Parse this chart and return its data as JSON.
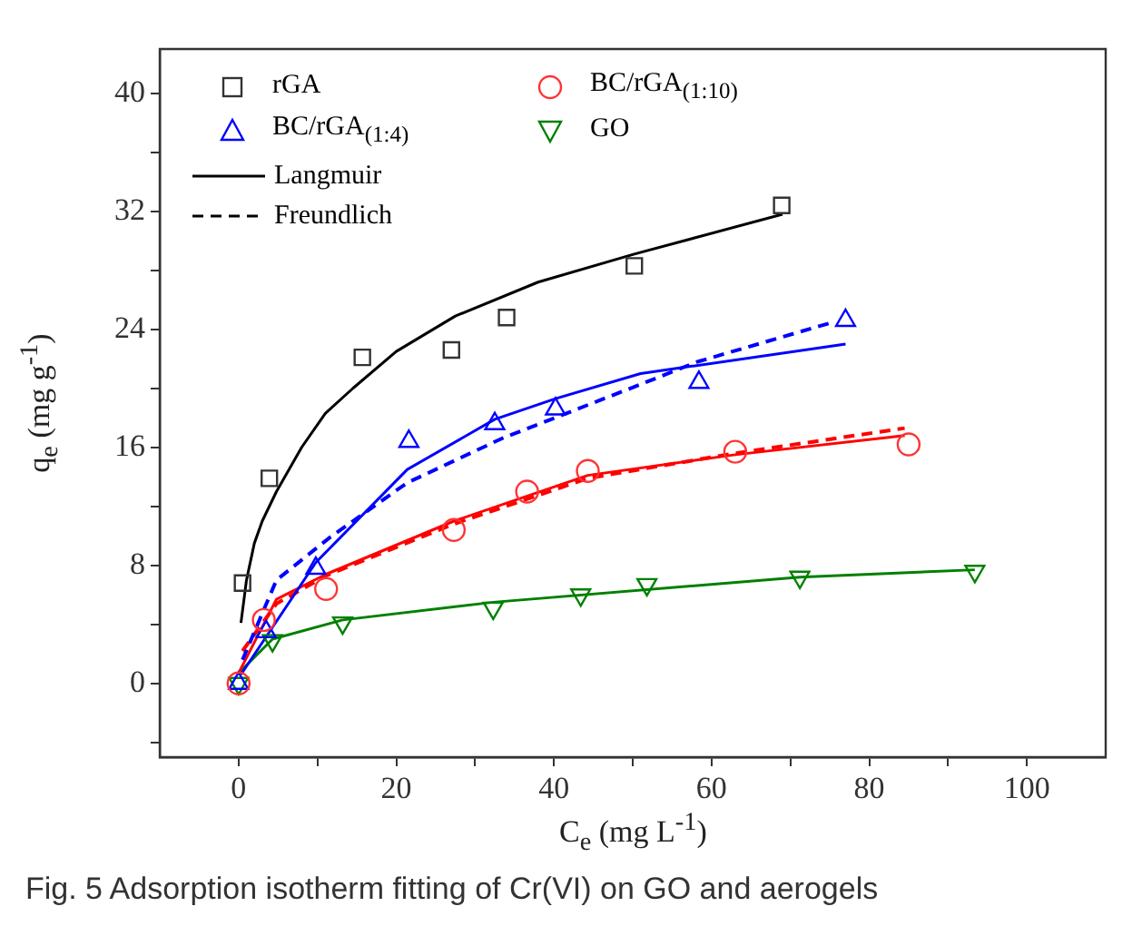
{
  "chart_data": {
    "type": "scatter",
    "xlabel": "C$_{e}$ (mg L$^{-1}$)",
    "ylabel": "q$_{e}$ (mg g$^{-1}$)",
    "xlim": [
      -10,
      110
    ],
    "ylim": [
      -5,
      43
    ],
    "xticks": [
      0,
      {
        "value": 10,
        "label": null
      },
      20,
      {
        "value": 30,
        "label": null
      },
      40,
      {
        "value": 50,
        "label": null
      },
      60,
      {
        "value": 70,
        "label": null
      },
      80,
      {
        "value": 90,
        "label": null
      },
      100
    ],
    "yticks": [
      {
        "value": -4,
        "label": null
      },
      0,
      {
        "value": 4,
        "label": null
      },
      8,
      {
        "value": 12,
        "label": null
      },
      16,
      {
        "value": 20,
        "label": null
      },
      24,
      {
        "value": 28,
        "label": null
      },
      32,
      {
        "value": 36,
        "label": null
      },
      40
    ],
    "grid": false,
    "legend": "top left",
    "series": [
      {
        "name": "rGA",
        "color": "#333333",
        "marker": "square",
        "x": [
          0.5,
          3.9,
          15.7,
          27,
          34,
          50.2,
          68.9
        ],
        "values": [
          6.8,
          13.9,
          22.1,
          22.6,
          24.8,
          28.3,
          32.4
        ]
      },
      {
        "name": "BC/rGA$_{(1:10)}$",
        "color": "#ff3333",
        "marker": "circle",
        "x": [
          0,
          3.2,
          11.1,
          27.3,
          36.6,
          44.3,
          63,
          85
        ],
        "values": [
          0,
          4.3,
          6.4,
          10.4,
          13,
          14.4,
          15.7,
          16.2
        ]
      },
      {
        "name": "BC/rGA$_{(1:4)}$",
        "color": "#0000ff",
        "marker": "triangle",
        "x": [
          0,
          3.5,
          9.8,
          21.6,
          32.5,
          40.2,
          58.4,
          77
        ],
        "values": [
          0,
          3.5,
          7.8,
          16.4,
          17.6,
          18.6,
          20.4,
          24.6
        ]
      },
      {
        "name": "GO",
        "color": "#008000",
        "marker": "triangle-down",
        "x": [
          0,
          4.3,
          13.2,
          32.3,
          43.4,
          51.8,
          71.2,
          93.4
        ],
        "values": [
          0,
          2.9,
          4.1,
          5.1,
          6.0,
          6.7,
          7.2,
          7.6
        ]
      },
      {
        "type": "line",
        "color": "#000000",
        "line_style": "solid",
        "marker": "none",
        "x": [
          0.3,
          1,
          2,
          3,
          4.8,
          8,
          11,
          14.5,
          20,
          27.5,
          38,
          50.2,
          69
        ],
        "values": [
          4.1,
          7,
          9.5,
          11,
          13,
          16,
          18.3,
          20,
          22.5,
          24.9,
          27.2,
          29.1,
          31.8
        ]
      },
      {
        "type": "line",
        "color": "#0000ff",
        "line_style": "solid",
        "marker": "none",
        "x": [
          0.3,
          9.8,
          21.4,
          32.5,
          40.2,
          51,
          77
        ],
        "values": [
          0.6,
          8.2,
          14.5,
          17.9,
          19.3,
          21,
          23
        ]
      },
      {
        "type": "line",
        "color": "#0000ff",
        "line_style": "dashed",
        "marker": "none",
        "x": [
          0.5,
          4.8,
          11.6,
          21.4,
          33.4,
          50.2,
          58.2,
          75.5
        ],
        "values": [
          1.6,
          7,
          9.9,
          13.6,
          16.6,
          20.1,
          21.8,
          24.5
        ]
      },
      {
        "type": "line",
        "color": "#ff0000",
        "line_style": "solid",
        "marker": "none",
        "x": [
          0,
          4.8,
          11.1,
          27.3,
          44.3,
          63,
          84.5
        ],
        "values": [
          0.7,
          5.7,
          7.4,
          11,
          14.1,
          15.5,
          16.8
        ]
      },
      {
        "type": "line",
        "color": "#ff0000",
        "line_style": "dashed",
        "marker": "none",
        "x": [
          0.5,
          4.8,
          11.1,
          27.3,
          44.3,
          63,
          84.5
        ],
        "values": [
          2.2,
          5.4,
          7.3,
          10.8,
          13.9,
          15.6,
          17.3
        ]
      },
      {
        "type": "line",
        "color": "#008000",
        "line_style": "solid",
        "marker": "none",
        "x": [
          0,
          4.3,
          13.2,
          32.3,
          71.2,
          93.4
        ],
        "values": [
          0.7,
          3,
          4.3,
          5.5,
          7.2,
          7.7
        ]
      }
    ],
    "annotations": [
      "Langmuir",
      "Freundlich",
      "Fig. 5  Adsorption isotherm fitting of Cr(VI) on GO and aerogels"
    ]
  }
}
